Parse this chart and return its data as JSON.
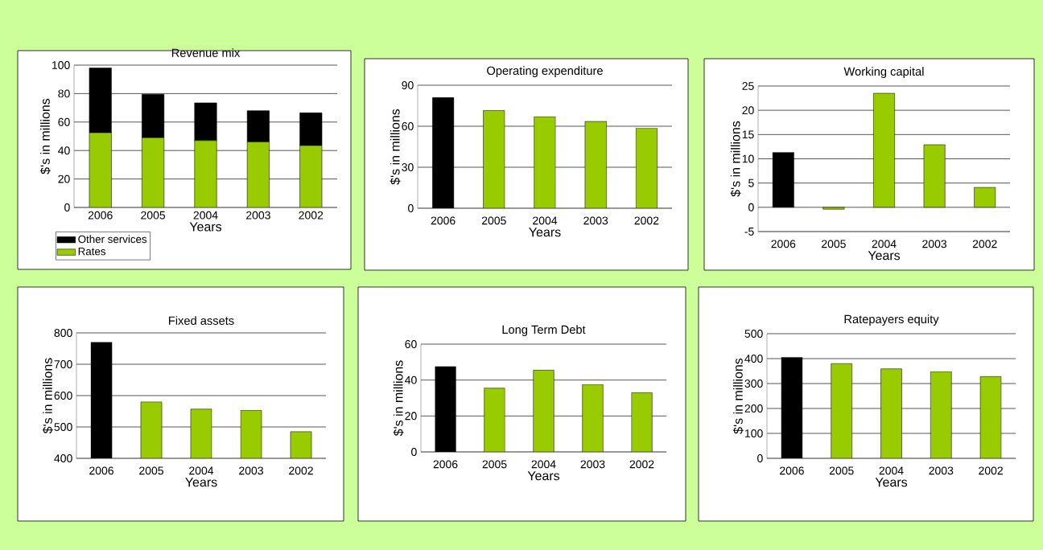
{
  "chart_data": [
    {
      "type": "bar",
      "title": "Revenue mix",
      "xlabel": "Years",
      "ylabel": "$'s in millions",
      "categories": [
        "2006",
        "2005",
        "2004",
        "2003",
        "2002"
      ],
      "stacked": true,
      "series": [
        {
          "name": "Rates",
          "color": "#99cc00",
          "values": [
            52.5,
            49,
            47,
            46,
            43.5
          ]
        },
        {
          "name": "Other services",
          "color": "#000000",
          "values": [
            45.5,
            30.5,
            26.5,
            22,
            23
          ]
        }
      ],
      "ylim": [
        0,
        100
      ],
      "yticks": [
        0,
        20,
        40,
        60,
        80,
        100
      ],
      "grid": "y",
      "legend": "bottom left"
    },
    {
      "type": "bar",
      "title": "Operating expenditure",
      "xlabel": "Years",
      "ylabel": "$'s in millions",
      "categories": [
        "2006",
        "2005",
        "2004",
        "2003",
        "2002"
      ],
      "values": [
        81,
        71.5,
        67,
        63.5,
        58.5
      ],
      "colors": [
        "#000000",
        "#99cc00",
        "#99cc00",
        "#99cc00",
        "#99cc00"
      ],
      "ylim": [
        0,
        90
      ],
      "yticks": [
        0,
        30,
        60,
        90
      ],
      "grid": "y"
    },
    {
      "type": "bar",
      "title": "Working capital",
      "xlabel": "Years",
      "ylabel": "$'s in millions",
      "categories": [
        "2006",
        "2005",
        "2004",
        "2003",
        "2002"
      ],
      "values": [
        11.3,
        -0.4,
        23.5,
        12.9,
        4.1
      ],
      "colors": [
        "#000000",
        "#99cc00",
        "#99cc00",
        "#99cc00",
        "#99cc00"
      ],
      "ylim": [
        -5,
        25
      ],
      "yticks": [
        -5,
        0,
        5,
        10,
        15,
        20,
        25
      ],
      "grid": "y"
    },
    {
      "type": "bar",
      "title": "Fixed assets",
      "xlabel": "Years",
      "ylabel": "$'s in millions",
      "categories": [
        "2006",
        "2005",
        "2004",
        "2003",
        "2002"
      ],
      "values": [
        770,
        580,
        557,
        553,
        485
      ],
      "colors": [
        "#000000",
        "#99cc00",
        "#99cc00",
        "#99cc00",
        "#99cc00"
      ],
      "ylim": [
        400,
        800
      ],
      "yticks": [
        400,
        500,
        600,
        700,
        800
      ],
      "grid": "y"
    },
    {
      "type": "bar",
      "title": "Long Term Debt",
      "xlabel": "Years",
      "ylabel": "$'s in millions",
      "categories": [
        "2006",
        "2005",
        "2004",
        "2003",
        "2002"
      ],
      "values": [
        47.5,
        35.5,
        45.5,
        37.5,
        33
      ],
      "colors": [
        "#000000",
        "#99cc00",
        "#99cc00",
        "#99cc00",
        "#99cc00"
      ],
      "ylim": [
        0,
        60
      ],
      "yticks": [
        0,
        20,
        40,
        60
      ],
      "grid": "y"
    },
    {
      "type": "bar",
      "title": "Ratepayers equity",
      "xlabel": "Years",
      "ylabel": "$'s in millions",
      "categories": [
        "2006",
        "2005",
        "2004",
        "2003",
        "2002"
      ],
      "values": [
        405,
        380,
        359,
        348,
        328
      ],
      "colors": [
        "#000000",
        "#99cc00",
        "#99cc00",
        "#99cc00",
        "#99cc00"
      ],
      "ylim": [
        0,
        500
      ],
      "yticks": [
        0,
        100,
        200,
        300,
        400,
        500
      ],
      "grid": "y"
    }
  ]
}
